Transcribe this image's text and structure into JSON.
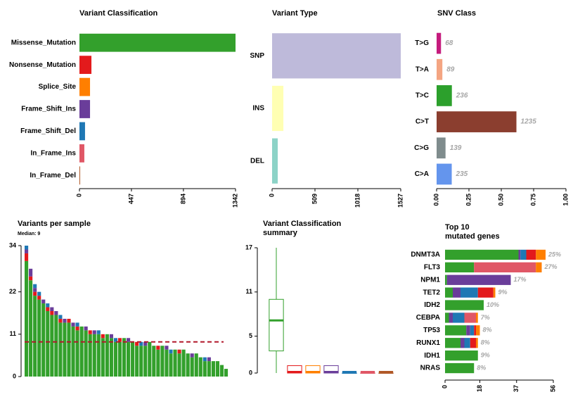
{
  "chart_data": [
    {
      "type": "hbar",
      "title": "Variant Classification",
      "categories": [
        "Missense_Mutation",
        "Nonsense_Mutation",
        "Splice_Site",
        "Frame_Shift_Ins",
        "Frame_Shift_Del",
        "In_Frame_Ins",
        "In_Frame_Del"
      ],
      "values": [
        1342,
        103,
        91,
        91,
        48,
        42,
        6
      ],
      "colors": [
        "#33a02c",
        "#e31a1c",
        "#ff7f00",
        "#6a3d9a",
        "#1f78b4",
        "#e05766",
        "#b15928"
      ],
      "xlim": [
        0,
        1342
      ],
      "xticks": [
        0,
        447,
        894,
        1342
      ]
    },
    {
      "type": "hbar",
      "title": "Variant Type",
      "categories": [
        "SNP",
        "INS",
        "DEL"
      ],
      "values": [
        1527,
        134,
        67
      ],
      "colors": [
        "#bebada",
        "#ffffb3",
        "#8dd3c7"
      ],
      "xlim": [
        0,
        1527
      ],
      "xticks": [
        0,
        509,
        1018,
        1527
      ]
    },
    {
      "type": "hbar",
      "title": "SNV Class",
      "categories": [
        "T>G",
        "T>A",
        "T>C",
        "C>T",
        "C>G",
        "C>A"
      ],
      "values": [
        0.034,
        0.0445,
        0.118,
        0.617,
        0.069,
        0.117
      ],
      "counts": [
        68,
        89,
        236,
        1235,
        139,
        235
      ],
      "colors": [
        "#c51b7d",
        "#f4a582",
        "#2ca02c",
        "#8b3e2f",
        "#7f8c8d",
        "#6495ed"
      ],
      "xlim": [
        0,
        1
      ],
      "xticks": [
        {
          "value": 0,
          "label": "0.00"
        },
        {
          "value": 0.25,
          "label": "0.25"
        },
        {
          "value": 0.5,
          "label": "0.50"
        },
        {
          "value": 0.75,
          "label": "0.75"
        },
        {
          "value": 1,
          "label": "1.00"
        }
      ]
    },
    {
      "type": "stacked",
      "title": "Variants per sample",
      "subtitle": "Median: 9",
      "median": 9,
      "series": [
        {
          "color": "#33a02c",
          "values": [
            30,
            25,
            21,
            20,
            19,
            17,
            16,
            16,
            14,
            14,
            14,
            13,
            12,
            13,
            12,
            11,
            11,
            11,
            10,
            11,
            10,
            9,
            9,
            10,
            9,
            9,
            8,
            8,
            8,
            9,
            8,
            7,
            8,
            7,
            6,
            7,
            6,
            7,
            6,
            5,
            6,
            5,
            4,
            4,
            4,
            4,
            3,
            2
          ]
        },
        {
          "color": "#e31a1c",
          "values": [
            2,
            1,
            1,
            1,
            0,
            1,
            1,
            0,
            1,
            0,
            1,
            0,
            1,
            0,
            0,
            1,
            0,
            0,
            1,
            0,
            0,
            0,
            1,
            0,
            0,
            0,
            1,
            0,
            0,
            0,
            0,
            1,
            0,
            0,
            0,
            0,
            1,
            0,
            0,
            0,
            0,
            0,
            0,
            0,
            0,
            0,
            0,
            0
          ]
        },
        {
          "color": "#6a3d9a",
          "values": [
            1,
            2,
            1,
            0,
            1,
            0,
            1,
            1,
            0,
            1,
            0,
            1,
            0,
            0,
            1,
            0,
            1,
            0,
            0,
            0,
            1,
            0,
            0,
            0,
            1,
            0,
            0,
            0,
            1,
            0,
            0,
            0,
            0,
            1,
            0,
            0,
            0,
            0,
            0,
            1,
            0,
            0,
            0,
            1,
            0,
            0,
            0,
            0
          ]
        },
        {
          "color": "#1f78b4",
          "values": [
            1,
            0,
            1,
            1,
            0,
            1,
            0,
            0,
            1,
            0,
            0,
            0,
            1,
            0,
            0,
            0,
            0,
            1,
            0,
            0,
            0,
            1,
            0,
            0,
            0,
            0,
            0,
            1,
            0,
            0,
            0,
            0,
            0,
            0,
            1,
            0,
            0,
            0,
            0,
            0,
            0,
            0,
            1,
            0,
            0,
            0,
            0,
            0
          ]
        }
      ],
      "median_color": "#b2182b",
      "ylim": [
        0,
        34
      ],
      "yticks": [
        0,
        11,
        22,
        34
      ]
    },
    {
      "type": "box",
      "title": [
        "Variant Classification",
        "summary"
      ],
      "colors": [
        "#33a02c",
        "#e31a1c",
        "#ff7f00",
        "#6a3d9a",
        "#1f78b4",
        "#e05766",
        "#b15928"
      ],
      "min": [
        0,
        0,
        0,
        0,
        0,
        0,
        0
      ],
      "q1": [
        3,
        0,
        0,
        0,
        0,
        0,
        0
      ],
      "median": [
        7,
        0,
        0,
        0,
        0,
        0,
        0
      ],
      "q3": [
        10,
        1,
        1,
        1,
        0,
        0,
        0
      ],
      "max": [
        17,
        1,
        1,
        1,
        0,
        0,
        0
      ],
      "ylim": [
        0,
        17
      ],
      "yticks": [
        0,
        5,
        11,
        17
      ]
    },
    {
      "type": "stackedh",
      "title": [
        "Top 10",
        "mutated genes"
      ],
      "categories": [
        "DNMT3A",
        "FLT3",
        "NPM1",
        "TET2",
        "IDH2",
        "CEBPA",
        "TP53",
        "RUNX1",
        "IDH1",
        "NRAS"
      ],
      "series": [
        {
          "color": "#33a02c",
          "values": [
            38,
            15,
            1,
            4,
            20,
            2,
            11,
            8,
            17,
            15
          ]
        },
        {
          "color": "#6a3d9a",
          "values": [
            1,
            0,
            33,
            4,
            0,
            2,
            2,
            2,
            0,
            0
          ]
        },
        {
          "color": "#1f78b4",
          "values": [
            3,
            0,
            0,
            9,
            0,
            6,
            2,
            3,
            0,
            0
          ]
        },
        {
          "color": "#e31a1c",
          "values": [
            5,
            0,
            0,
            8,
            0,
            0,
            1,
            3,
            0,
            0
          ]
        },
        {
          "color": "#e05766",
          "values": [
            0,
            32,
            0,
            0,
            0,
            6,
            0,
            0,
            0,
            0
          ]
        },
        {
          "color": "#ff7f00",
          "values": [
            5,
            3,
            0,
            1,
            0,
            1,
            2,
            1,
            0,
            0
          ]
        }
      ],
      "percent_labels": [
        "25%",
        "27%",
        "17%",
        "9%",
        "10%",
        "7%",
        "8%",
        "8%",
        "9%",
        "8%"
      ],
      "xlim": [
        0,
        56
      ],
      "xticks": [
        0,
        18,
        37,
        56
      ]
    }
  ]
}
